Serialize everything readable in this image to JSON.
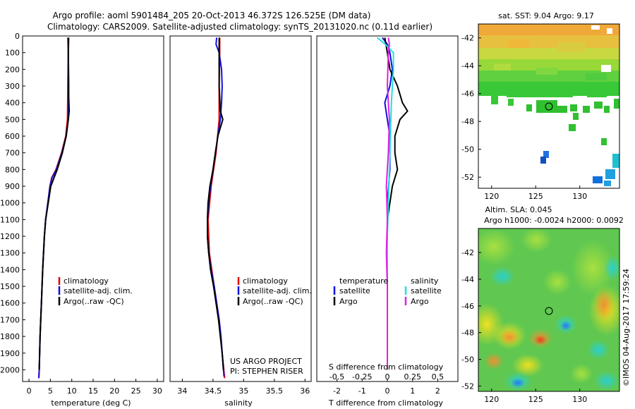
{
  "header": {
    "title_line1": "Argo profile: aoml 5901484_205 20-Oct-2013 46.372S 126.525E (DM data)",
    "title_line2": "Climatology: CARS2009. Satellite-adjusted climatology: synTS_20131020.nc (0.11d earlier)"
  },
  "colors": {
    "climatology": "#e00000",
    "satellite": "#1010e0",
    "argo": "#000000",
    "sal_satellite": "#20e0e0",
    "sal_argo": "#e020e0"
  },
  "credits": {
    "project": "US ARGO PROJECT",
    "pi": "PI: STEPHEN RISER",
    "timestamp": "©IMOS 04-Aug-2017 17:59:24"
  },
  "maps": {
    "sst_title": "sat. SST: 9.04  Argo: 9.17",
    "sla_title1": "Altim. SLA: 0.045",
    "sla_title2": "Argo h1000: -0.0024 h2000: 0.0092",
    "lat_ticks": [
      -42,
      -44,
      -46,
      -48,
      -50,
      -52
    ],
    "lon_ticks": [
      120,
      125,
      130
    ],
    "profile_location": {
      "lon": 126.525,
      "lat": -46.372
    }
  },
  "chart_data": [
    {
      "type": "line",
      "panel": "temperature",
      "xlabel": "temperature (deg C)",
      "xlim": [
        -1.5,
        31.5
      ],
      "x_ticks": [
        0,
        5,
        10,
        15,
        20,
        25,
        30
      ],
      "ylim": [
        0,
        2070
      ],
      "y_ticks": [
        0,
        100,
        200,
        300,
        400,
        500,
        600,
        700,
        800,
        900,
        1000,
        1100,
        1200,
        1300,
        1400,
        1500,
        1600,
        1700,
        1800,
        1900,
        2000
      ],
      "legend": [
        "climatology",
        "satellite-adj. clim.",
        "Argo(..raw -QC)"
      ],
      "series": [
        {
          "name": "climatology",
          "color": "#e00000",
          "depth": [
            10,
            100,
            300,
            500,
            600,
            700,
            800,
            850,
            900,
            1000,
            1100,
            1200,
            1400,
            1600,
            1800,
            2000,
            2050
          ],
          "values": [
            9.3,
            9.2,
            9.1,
            9.0,
            8.6,
            7.6,
            6.3,
            5.3,
            4.9,
            4.4,
            3.9,
            3.6,
            3.2,
            2.9,
            2.6,
            2.4,
            2.3
          ]
        },
        {
          "name": "satellite-adj. clim.",
          "color": "#1010e0",
          "depth": [
            10,
            100,
            300,
            500,
            600,
            700,
            800,
            850,
            900,
            1000,
            1100,
            1200,
            1400,
            1600,
            1800,
            2000,
            2050
          ],
          "values": [
            9.1,
            9.2,
            9.3,
            9.2,
            8.7,
            7.7,
            6.4,
            5.4,
            4.9,
            4.4,
            3.9,
            3.6,
            3.2,
            2.9,
            2.6,
            2.4,
            2.3
          ]
        },
        {
          "name": "Argo(..raw -QC)",
          "color": "#000000",
          "depth": [
            10,
            100,
            300,
            450,
            500,
            600,
            700,
            800,
            900,
            1000,
            1100,
            1200,
            1400,
            1600,
            1800,
            2000
          ],
          "values": [
            9.2,
            9.2,
            9.2,
            9.4,
            9.2,
            8.7,
            7.8,
            6.6,
            5.1,
            4.5,
            3.9,
            3.6,
            3.2,
            2.9,
            2.6,
            2.4
          ]
        }
      ]
    },
    {
      "type": "line",
      "panel": "salinity",
      "xlabel": "salinity",
      "xlim": [
        33.8,
        36.1
      ],
      "x_ticks": [
        34,
        34.5,
        35,
        35.5,
        36
      ],
      "x_tick_labels": [
        "34",
        "34.5",
        "35",
        "35.5",
        "36"
      ],
      "ylim": [
        0,
        2070
      ],
      "legend": [
        "climatology",
        "satellite-adj. clim.",
        "Argo(..raw -QC)"
      ],
      "series": [
        {
          "name": "climatology",
          "color": "#e00000",
          "depth": [
            10,
            100,
            300,
            500,
            700,
            900,
            1100,
            1300,
            1500,
            1700,
            1900,
            2050
          ],
          "values": [
            34.61,
            34.61,
            34.6,
            34.6,
            34.55,
            34.47,
            34.42,
            34.44,
            34.52,
            34.6,
            34.65,
            34.69
          ]
        },
        {
          "name": "satellite-adj. clim.",
          "color": "#1010e0",
          "depth": [
            10,
            50,
            100,
            200,
            300,
            400,
            500,
            600,
            700,
            800,
            900,
            1000,
            1100,
            1200,
            1300,
            1400,
            1500,
            1600,
            1700,
            1800,
            1900,
            2000,
            2040
          ],
          "values": [
            34.56,
            34.55,
            34.6,
            34.64,
            34.65,
            34.64,
            34.62,
            34.58,
            34.54,
            34.5,
            34.46,
            34.43,
            34.41,
            34.41,
            34.43,
            34.47,
            34.52,
            34.56,
            34.6,
            34.63,
            34.65,
            34.67,
            34.68
          ]
        },
        {
          "name": "Argo(..raw -QC)",
          "color": "#000000",
          "depth": [
            10,
            100,
            300,
            450,
            500,
            600,
            700,
            800,
            900,
            1000,
            1100,
            1200,
            1300,
            1400,
            1500,
            1600,
            1700,
            1800,
            1900,
            2000
          ],
          "values": [
            34.6,
            34.6,
            34.6,
            34.62,
            34.66,
            34.58,
            34.54,
            34.5,
            34.45,
            34.42,
            34.41,
            34.41,
            34.43,
            34.46,
            34.51,
            34.55,
            34.59,
            34.62,
            34.65,
            34.67
          ]
        }
      ]
    },
    {
      "type": "line",
      "panel": "differences",
      "xlabel": "T difference from climatology",
      "xlabel_top": "S difference from climatology",
      "xlim_T": [
        -2.8,
        2.8
      ],
      "x_ticks_T": [
        -2,
        -1,
        0,
        1,
        2
      ],
      "x_ticks_S": [
        -0.5,
        -0.25,
        0,
        0.25,
        0.5
      ],
      "x_tick_labels_S": [
        "-0.5",
        "-0.25",
        "0",
        "0.25",
        "0.5"
      ],
      "ylim": [
        0,
        2070
      ],
      "legend_temperature_title": "temperature",
      "legend_salinity_title": "salinity",
      "legend": [
        "satellite",
        "Argo",
        "satellite",
        "Argo"
      ],
      "series": [
        {
          "name": "T satellite",
          "color": "#1010e0",
          "depth": [
            10,
            50,
            100,
            200,
            300,
            400,
            500,
            600,
            700,
            800,
            1000,
            1200,
            1500,
            1800,
            2000
          ],
          "values": [
            -0.2,
            0,
            0.1,
            0.2,
            0.1,
            -0.1,
            0,
            0.1,
            0.1,
            0.1,
            0,
            0,
            0,
            0,
            0
          ]
        },
        {
          "name": "T Argo",
          "color": "#000000",
          "depth": [
            10,
            100,
            200,
            300,
            400,
            450,
            500,
            600,
            700,
            800,
            900,
            1000,
            1100,
            1200,
            1500,
            1800,
            2000
          ],
          "values": [
            -0.1,
            0,
            0.1,
            0.4,
            0.6,
            0.8,
            0.5,
            0.3,
            0.3,
            0.4,
            0.2,
            0.1,
            0,
            0,
            0,
            0,
            0
          ]
        },
        {
          "name": "S satellite",
          "color": "#20e0e0",
          "depth": [
            10,
            50,
            100,
            200,
            400,
            600,
            800,
            1000,
            1200,
            1400,
            1600,
            1800,
            2000
          ],
          "values": [
            -0.1,
            -0.02,
            0.06,
            0.06,
            0.04,
            0.03,
            0.02,
            0.01,
            0.0,
            0.0,
            0.0,
            0.0,
            0.0
          ]
        },
        {
          "name": "S Argo",
          "color": "#e020e0",
          "depth": [
            10,
            50,
            100,
            300,
            500,
            700,
            900,
            1100,
            1300,
            1500,
            1700,
            2000
          ],
          "values": [
            0.01,
            0.02,
            0.01,
            0.0,
            0.02,
            0.01,
            -0.01,
            0.0,
            -0.01,
            0.0,
            0.0,
            0.0
          ]
        }
      ]
    }
  ]
}
